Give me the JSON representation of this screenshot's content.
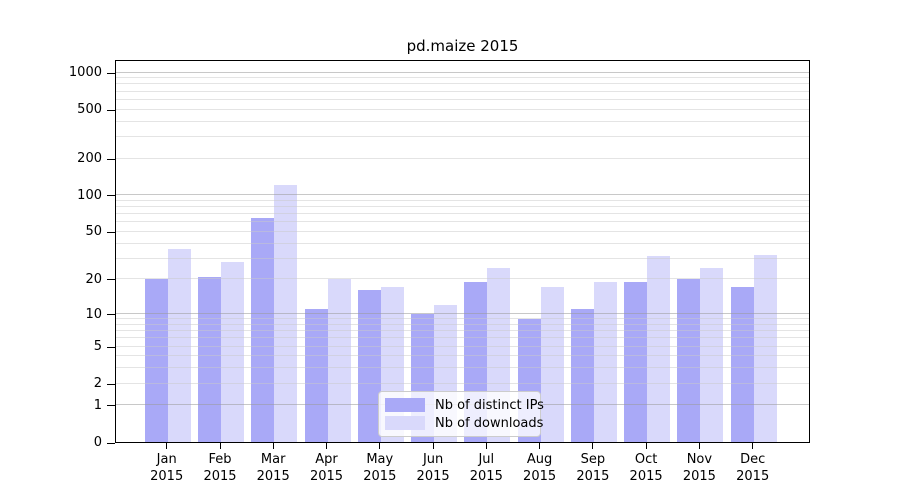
{
  "chart_data": {
    "type": "bar",
    "title": "pd.maize 2015",
    "x": {
      "months": [
        "Jan",
        "Feb",
        "Mar",
        "Apr",
        "May",
        "Jun",
        "Jul",
        "Aug",
        "Sep",
        "Oct",
        "Nov",
        "Dec"
      ],
      "year": "2015"
    },
    "series": [
      {
        "name": "Nb of distinct IPs",
        "color": "#a9a9f7",
        "values": [
          20,
          21,
          65,
          11,
          16,
          10,
          19,
          9,
          11,
          19,
          20,
          17
        ]
      },
      {
        "name": "Nb of downloads",
        "color": "#d9d9fb",
        "values": [
          36,
          28,
          120,
          20,
          17,
          12,
          25,
          17,
          19,
          31,
          25,
          32
        ]
      }
    ],
    "yscale": "log1p",
    "ylim": [
      0,
      1275
    ],
    "y_ticks": [
      0,
      1,
      2,
      5,
      10,
      20,
      50,
      100,
      200,
      500,
      1000
    ],
    "grid_major": [
      1,
      10,
      100,
      1000
    ],
    "grid_minor": [
      2,
      3,
      4,
      5,
      6,
      7,
      8,
      9,
      20,
      30,
      40,
      50,
      60,
      70,
      80,
      90,
      200,
      300,
      400,
      500,
      600,
      700,
      800,
      900
    ],
    "grid": "on",
    "legend_position": "lower-center"
  },
  "colors": {
    "bar_distinct_ips": "#a9a9f7",
    "bar_downloads": "#d9d9fb",
    "grid_major": "#9a9a9a",
    "grid_minor": "#c9c9c9",
    "axis": "#000000",
    "background": "#ffffff"
  }
}
